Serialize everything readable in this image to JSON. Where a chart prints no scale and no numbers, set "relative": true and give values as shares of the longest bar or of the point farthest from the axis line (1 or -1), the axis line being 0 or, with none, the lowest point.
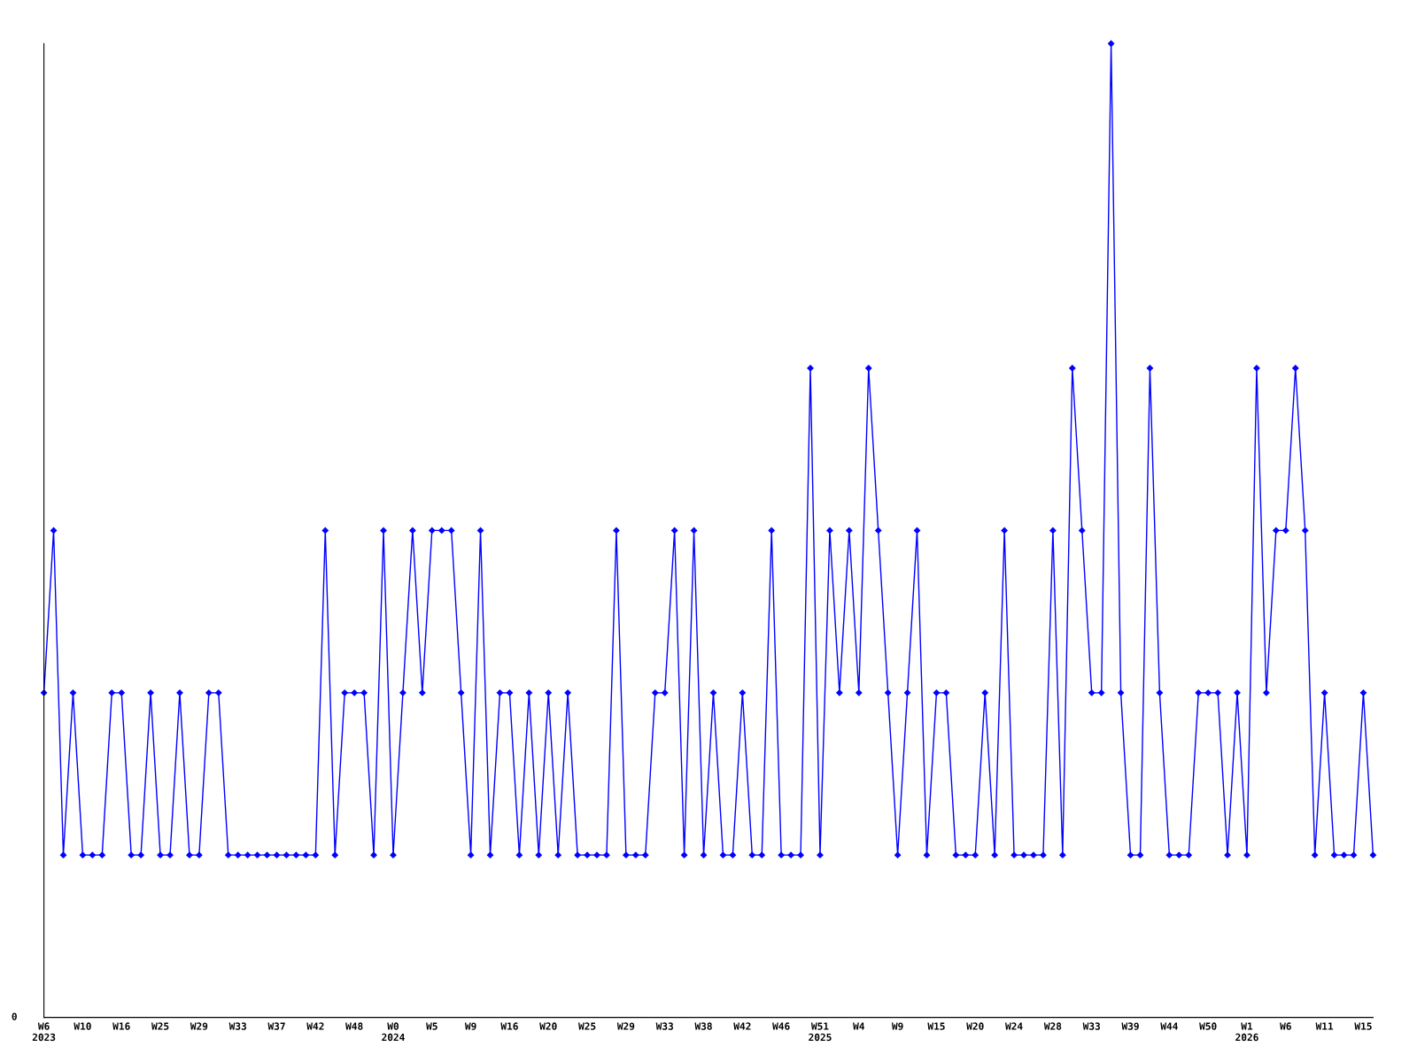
{
  "chart_data": {
    "type": "line",
    "relative": true,
    "marker": "diamond",
    "categories": [
      "W6\n2023",
      null,
      null,
      null,
      "W10",
      null,
      null,
      null,
      "W16",
      null,
      null,
      null,
      "W25",
      null,
      null,
      null,
      "W29",
      null,
      null,
      null,
      "W33",
      null,
      null,
      null,
      "W37",
      null,
      null,
      null,
      "W42",
      null,
      null,
      null,
      "W48",
      null,
      null,
      null,
      "W0\n2024",
      null,
      null,
      null,
      "W5",
      null,
      null,
      null,
      "W9",
      null,
      null,
      null,
      "W16",
      null,
      null,
      null,
      "W20",
      null,
      null,
      null,
      "W25",
      null,
      null,
      null,
      "W29",
      null,
      null,
      null,
      "W33",
      null,
      null,
      null,
      "W38",
      null,
      null,
      null,
      "W42",
      null,
      null,
      null,
      "W46",
      null,
      null,
      null,
      "W51\n2025",
      null,
      null,
      null,
      "W4",
      null,
      null,
      null,
      "W9",
      null,
      null,
      null,
      "W15",
      null,
      null,
      null,
      "W20",
      null,
      null,
      null,
      "W24",
      null,
      null,
      null,
      "W28",
      null,
      null,
      null,
      "W33",
      null,
      null,
      null,
      "W39",
      null,
      null,
      null,
      "W44",
      null,
      null,
      null,
      "W50",
      null,
      null,
      null,
      "W1\n2026",
      null,
      null,
      null,
      "W6",
      null,
      null,
      null,
      "W11",
      null,
      null,
      null,
      "W15",
      null
    ],
    "series": [
      {
        "color": "#0000ff",
        "values": [
          0.3333,
          0.5,
          0.1667,
          0.3333,
          0.1667,
          0.1667,
          0.1667,
          0.3333,
          0.3333,
          0.1667,
          0.1667,
          0.3333,
          0.1667,
          0.1667,
          0.3333,
          0.1667,
          0.1667,
          0.3333,
          0.3333,
          0.1667,
          0.1667,
          0.1667,
          0.1667,
          0.1667,
          0.1667,
          0.1667,
          0.1667,
          0.1667,
          0.1667,
          0.5,
          0.1667,
          0.3333,
          0.3333,
          0.3333,
          0.1667,
          0.5,
          0.1667,
          0.3333,
          0.5,
          0.3333,
          0.5,
          0.5,
          0.5,
          0.3333,
          0.1667,
          0.5,
          0.1667,
          0.3333,
          0.3333,
          0.1667,
          0.3333,
          0.1667,
          0.3333,
          0.1667,
          0.3333,
          0.1667,
          0.1667,
          0.1667,
          0.1667,
          0.5,
          0.1667,
          0.1667,
          0.1667,
          0.3333,
          0.3333,
          0.5,
          0.1667,
          0.5,
          0.1667,
          0.3333,
          0.1667,
          0.1667,
          0.3333,
          0.1667,
          0.1667,
          0.5,
          0.1667,
          0.1667,
          0.1667,
          0.6667,
          0.1667,
          0.5,
          0.3333,
          0.5,
          0.3333,
          0.6667,
          0.5,
          0.3333,
          0.1667,
          0.3333,
          0.5,
          0.1667,
          0.3333,
          0.3333,
          0.1667,
          0.1667,
          0.1667,
          0.3333,
          0.1667,
          0.5,
          0.1667,
          0.1667,
          0.1667,
          0.1667,
          0.5,
          0.1667,
          0.6667,
          0.5,
          0.3333,
          0.3333,
          1,
          0.3333,
          0.1667,
          0.1667,
          0.6667,
          0.3333,
          0.1667,
          0.1667,
          0.1667,
          0.3333,
          0.3333,
          0.3333,
          0.1667,
          0.3333,
          0.1667,
          0.6667,
          0.3333,
          0.5,
          0.5,
          0.6667,
          0.5,
          0.1667,
          0.3333,
          0.1667,
          0.1667,
          0.1667,
          0.3333,
          0.1667
        ]
      }
    ],
    "annotations": [
      "0"
    ]
  }
}
